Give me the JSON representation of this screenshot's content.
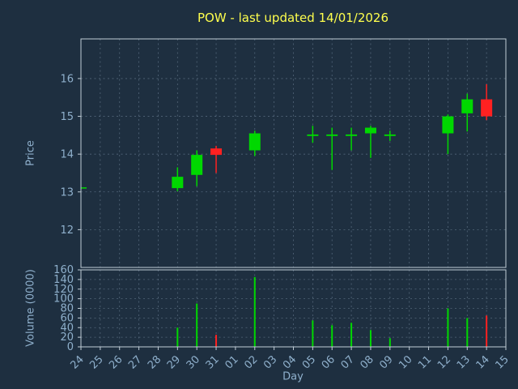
{
  "title": "POW - last updated 14/01/2026",
  "colors": {
    "background": "#1e2f40",
    "text": "#8fb0cc",
    "title": "#ffff4d",
    "grid": "#7e93a8",
    "border": "#c0ccd6",
    "up": "#00d800",
    "down": "#ff2121"
  },
  "chart_data": {
    "type": "candlestick",
    "title": "POW - last updated 14/01/2026",
    "xlabel": "Day",
    "grid": true,
    "price_axis": {
      "label": "Price",
      "ticks": [
        12,
        13,
        14,
        15,
        16
      ],
      "range": [
        11.0,
        17.05
      ]
    },
    "volume_axis": {
      "label": "Volume (0000)",
      "ticks": [
        0,
        20,
        40,
        60,
        80,
        100,
        120,
        140,
        160
      ],
      "range": [
        0,
        160
      ]
    },
    "x_ticks": [
      "24",
      "25",
      "26",
      "27",
      "28",
      "29",
      "30",
      "31",
      "01",
      "02",
      "03",
      "04",
      "05",
      "06",
      "07",
      "08",
      "09",
      "10",
      "11",
      "12",
      "13",
      "14",
      "15"
    ],
    "candles": [
      {
        "day": "24",
        "open": 13.1,
        "high": 13.12,
        "low": 13.08,
        "close": 13.12,
        "volume": 0
      },
      {
        "day": "29",
        "open": 13.1,
        "high": 13.65,
        "low": 13.02,
        "close": 13.4,
        "volume": 40
      },
      {
        "day": "30",
        "open": 13.45,
        "high": 14.1,
        "low": 13.15,
        "close": 13.98,
        "volume": 90
      },
      {
        "day": "31",
        "open": 14.15,
        "high": 14.22,
        "low": 13.5,
        "close": 13.98,
        "volume": 25
      },
      {
        "day": "02",
        "open": 14.1,
        "high": 14.62,
        "low": 13.95,
        "close": 14.55,
        "volume": 145
      },
      {
        "day": "05",
        "open": 14.48,
        "high": 14.75,
        "low": 14.3,
        "close": 14.52,
        "volume": 55
      },
      {
        "day": "06",
        "open": 14.48,
        "high": 14.7,
        "low": 13.58,
        "close": 14.52,
        "volume": 45
      },
      {
        "day": "07",
        "open": 14.48,
        "high": 14.7,
        "low": 14.1,
        "close": 14.52,
        "volume": 50
      },
      {
        "day": "08",
        "open": 14.55,
        "high": 14.75,
        "low": 13.9,
        "close": 14.7,
        "volume": 35
      },
      {
        "day": "09",
        "open": 14.48,
        "high": 14.62,
        "low": 14.35,
        "close": 14.52,
        "volume": 18
      },
      {
        "day": "12",
        "open": 14.55,
        "high": 15.05,
        "low": 14.0,
        "close": 15.0,
        "volume": 80
      },
      {
        "day": "13",
        "open": 15.08,
        "high": 15.6,
        "low": 14.6,
        "close": 15.45,
        "volume": 60
      },
      {
        "day": "14",
        "open": 15.45,
        "high": 15.85,
        "low": 14.9,
        "close": 15.0,
        "volume": 65
      }
    ]
  }
}
